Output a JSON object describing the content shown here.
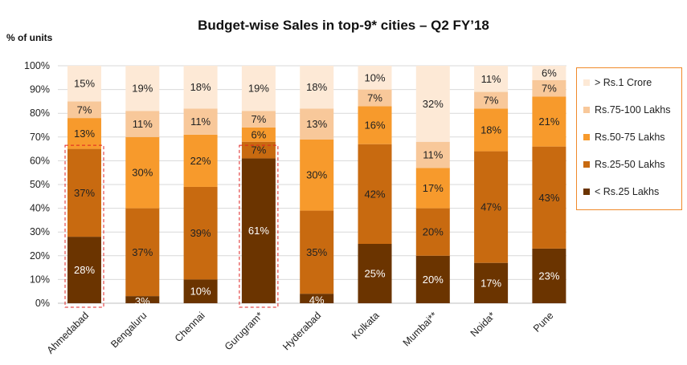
{
  "chart_data": {
    "type": "bar",
    "stacked": true,
    "title": "Budget-wise Sales in top-9* cities – Q2 FY’18",
    "ylabel": "% of units",
    "ylim": [
      0,
      100
    ],
    "yticks": [
      "0%",
      "10%",
      "20%",
      "30%",
      "40%",
      "50%",
      "60%",
      "70%",
      "80%",
      "90%",
      "100%"
    ],
    "categories": [
      "Ahmedabad",
      "Bengaluru",
      "Chennai",
      "Gurugram*",
      "Hyderabad",
      "Kolkata",
      "Mumbai**",
      "Noida*",
      "Pune"
    ],
    "series": [
      {
        "name": "< Rs.25 Lakhs",
        "color": "#6b3400",
        "label_color": "#ffffff",
        "values": [
          28,
          3,
          10,
          61,
          4,
          25,
          20,
          17,
          23
        ]
      },
      {
        "name": "Rs.25-50 Lakhs",
        "color": "#c86a10",
        "label_color": "#222222",
        "values": [
          37,
          37,
          39,
          7,
          35,
          42,
          20,
          47,
          43
        ]
      },
      {
        "name": "Rs.50-75 Lakhs",
        "color": "#f79a2c",
        "label_color": "#222222",
        "values": [
          13,
          30,
          22,
          6,
          30,
          16,
          17,
          18,
          21
        ]
      },
      {
        "name": "Rs.75-100 Lakhs",
        "color": "#f8c89a",
        "label_color": "#222222",
        "values": [
          7,
          11,
          11,
          7,
          13,
          7,
          11,
          7,
          7
        ]
      },
      {
        "name": "> Rs.1 Crore",
        "color": "#fde9d6",
        "label_color": "#222222",
        "values": [
          15,
          19,
          18,
          19,
          18,
          10,
          32,
          11,
          6
        ]
      }
    ],
    "highlighted_categories": [
      "Ahmedabad",
      "Gurugram*"
    ],
    "highlight_color": "#e02020",
    "legend_position": "right"
  }
}
